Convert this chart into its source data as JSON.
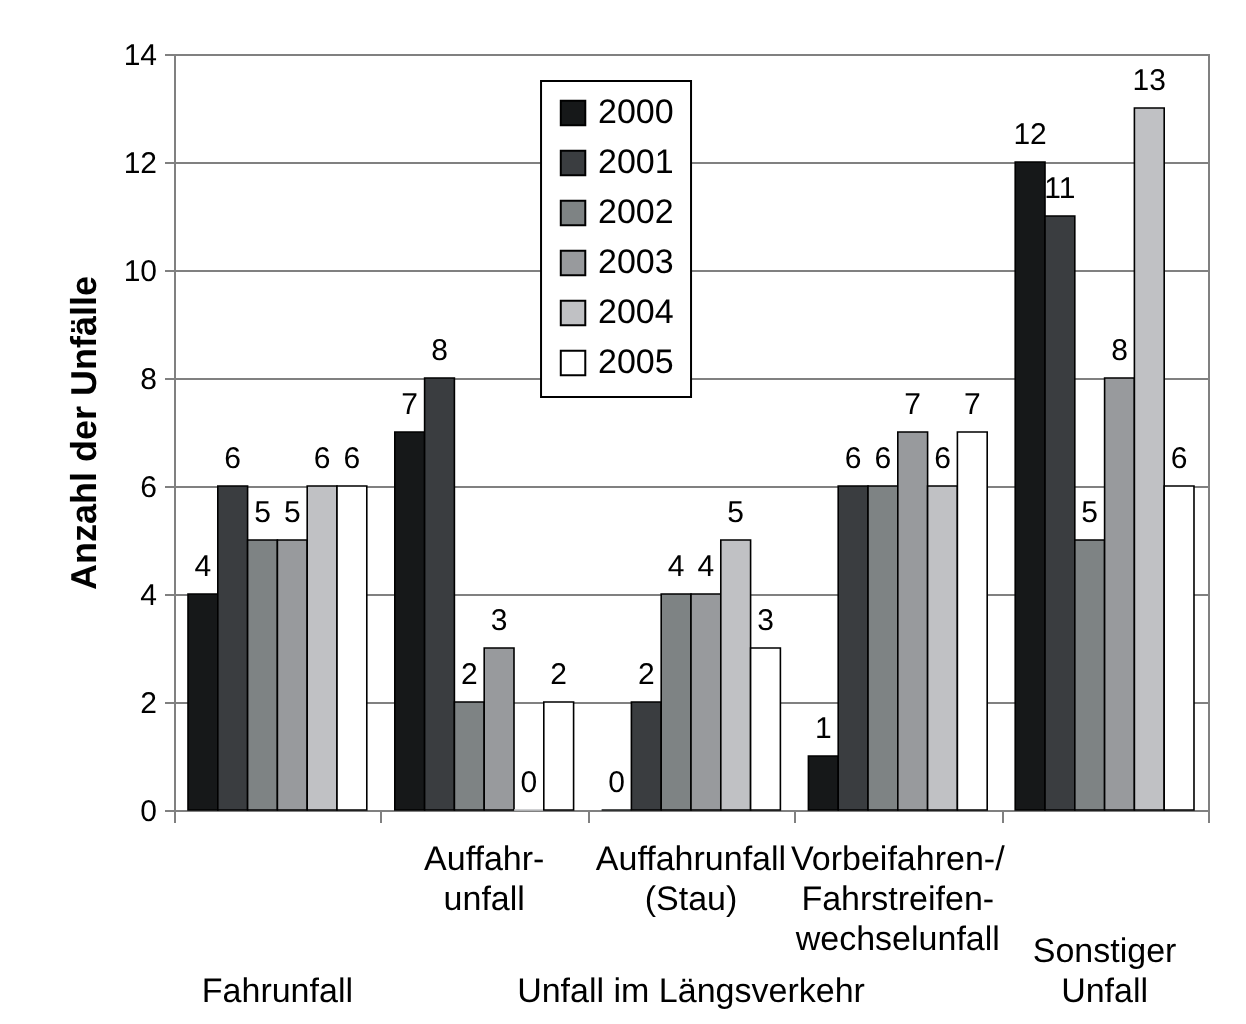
{
  "chart_data": {
    "type": "bar",
    "ylabel": "Anzahl der Unfälle",
    "categories": [
      "Fahrunfall",
      "Auffahr-\nunfall",
      "Auffahrunfall\n(Stau)",
      "Vorbeifahren-/\nFahrstreifen-\nwechselunfall",
      "Sonstiger\nUnfall"
    ],
    "series": [
      {
        "name": "2000",
        "color": "#161819",
        "values": [
          4,
          7,
          0,
          1,
          12
        ]
      },
      {
        "name": "2001",
        "color": "#3a3d40",
        "values": [
          6,
          8,
          2,
          6,
          11
        ]
      },
      {
        "name": "2002",
        "color": "#7e8384",
        "values": [
          5,
          2,
          4,
          6,
          5
        ]
      },
      {
        "name": "2003",
        "color": "#989a9d",
        "values": [
          5,
          3,
          4,
          7,
          8
        ]
      },
      {
        "name": "2004",
        "color": "#c0c1c4",
        "values": [
          6,
          0,
          5,
          6,
          13
        ]
      },
      {
        "name": "2005",
        "color": "#ffffff",
        "values": [
          6,
          2,
          3,
          7,
          6
        ]
      }
    ],
    "ylim": [
      0,
      14
    ],
    "yticks": [
      0,
      2,
      4,
      6,
      8,
      10,
      12,
      14
    ],
    "grid": "y",
    "legend": "top",
    "data_labels": true,
    "annotations": [
      "Unfall im Längsverkehr"
    ]
  }
}
